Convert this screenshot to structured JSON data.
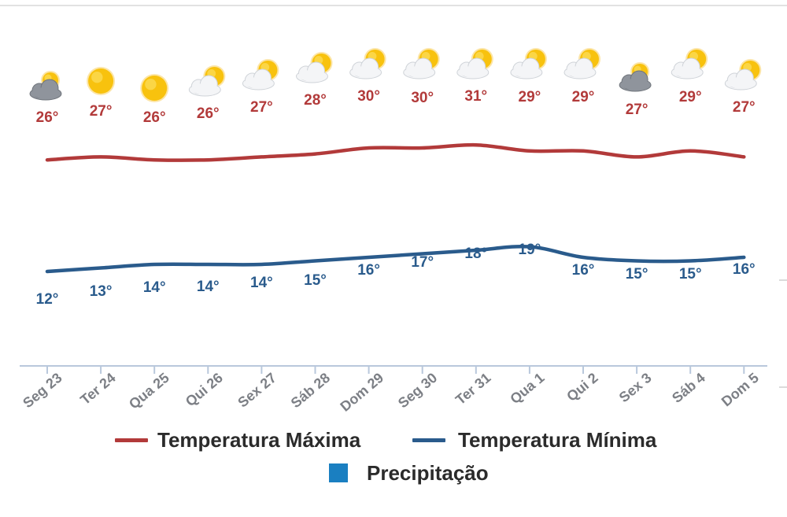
{
  "chart_data": {
    "type": "line",
    "categories": [
      "Seg 23",
      "Ter 24",
      "Qua 25",
      "Qui 26",
      "Sex 27",
      "Sáb 28",
      "Dom 29",
      "Seg 30",
      "Ter 31",
      "Qua 1",
      "Qui 2",
      "Sex 3",
      "Sáb 4",
      "Dom 5"
    ],
    "series": [
      {
        "name": "Temperatura Máxima",
        "color": "#b23a3a",
        "values": [
          26,
          27,
          26,
          26,
          27,
          28,
          30,
          30,
          31,
          29,
          29,
          27,
          29,
          27
        ],
        "labels": [
          "26°",
          "27°",
          "26°",
          "26°",
          "27°",
          "28°",
          "30°",
          "30°",
          "31°",
          "29°",
          "29°",
          "27°",
          "29°",
          "27°"
        ]
      },
      {
        "name": "Temperatura Mínima",
        "color": "#2a5b8c",
        "values": [
          12,
          13,
          14,
          14,
          14,
          15,
          16,
          17,
          18,
          19,
          16,
          15,
          15,
          16
        ],
        "labels": [
          "12°",
          "13°",
          "14°",
          "14°",
          "14°",
          "15°",
          "16°",
          "17°",
          "18°",
          "19°",
          "16°",
          "15°",
          "15°",
          "16°"
        ]
      }
    ],
    "weather_icons": [
      "cloudy-sun-icon",
      "sun-icon",
      "sun-icon",
      "partly-cloudy-icon",
      "partly-cloudy-icon",
      "partly-cloudy-icon",
      "partly-cloudy-icon",
      "partly-cloudy-icon",
      "partly-cloudy-icon",
      "partly-cloudy-icon",
      "partly-cloudy-icon",
      "cloudy-sun-icon",
      "partly-cloudy-icon",
      "partly-cloudy-icon"
    ],
    "legend": [
      {
        "name": "Temperatura Máxima",
        "kind": "line",
        "color": "#b23a3a"
      },
      {
        "name": "Temperatura Mínima",
        "kind": "line",
        "color": "#2a5b8c"
      },
      {
        "name": "Precipitação",
        "kind": "square",
        "color": "#1a7fc1"
      }
    ],
    "legend_position": "bottom",
    "grid": false
  }
}
